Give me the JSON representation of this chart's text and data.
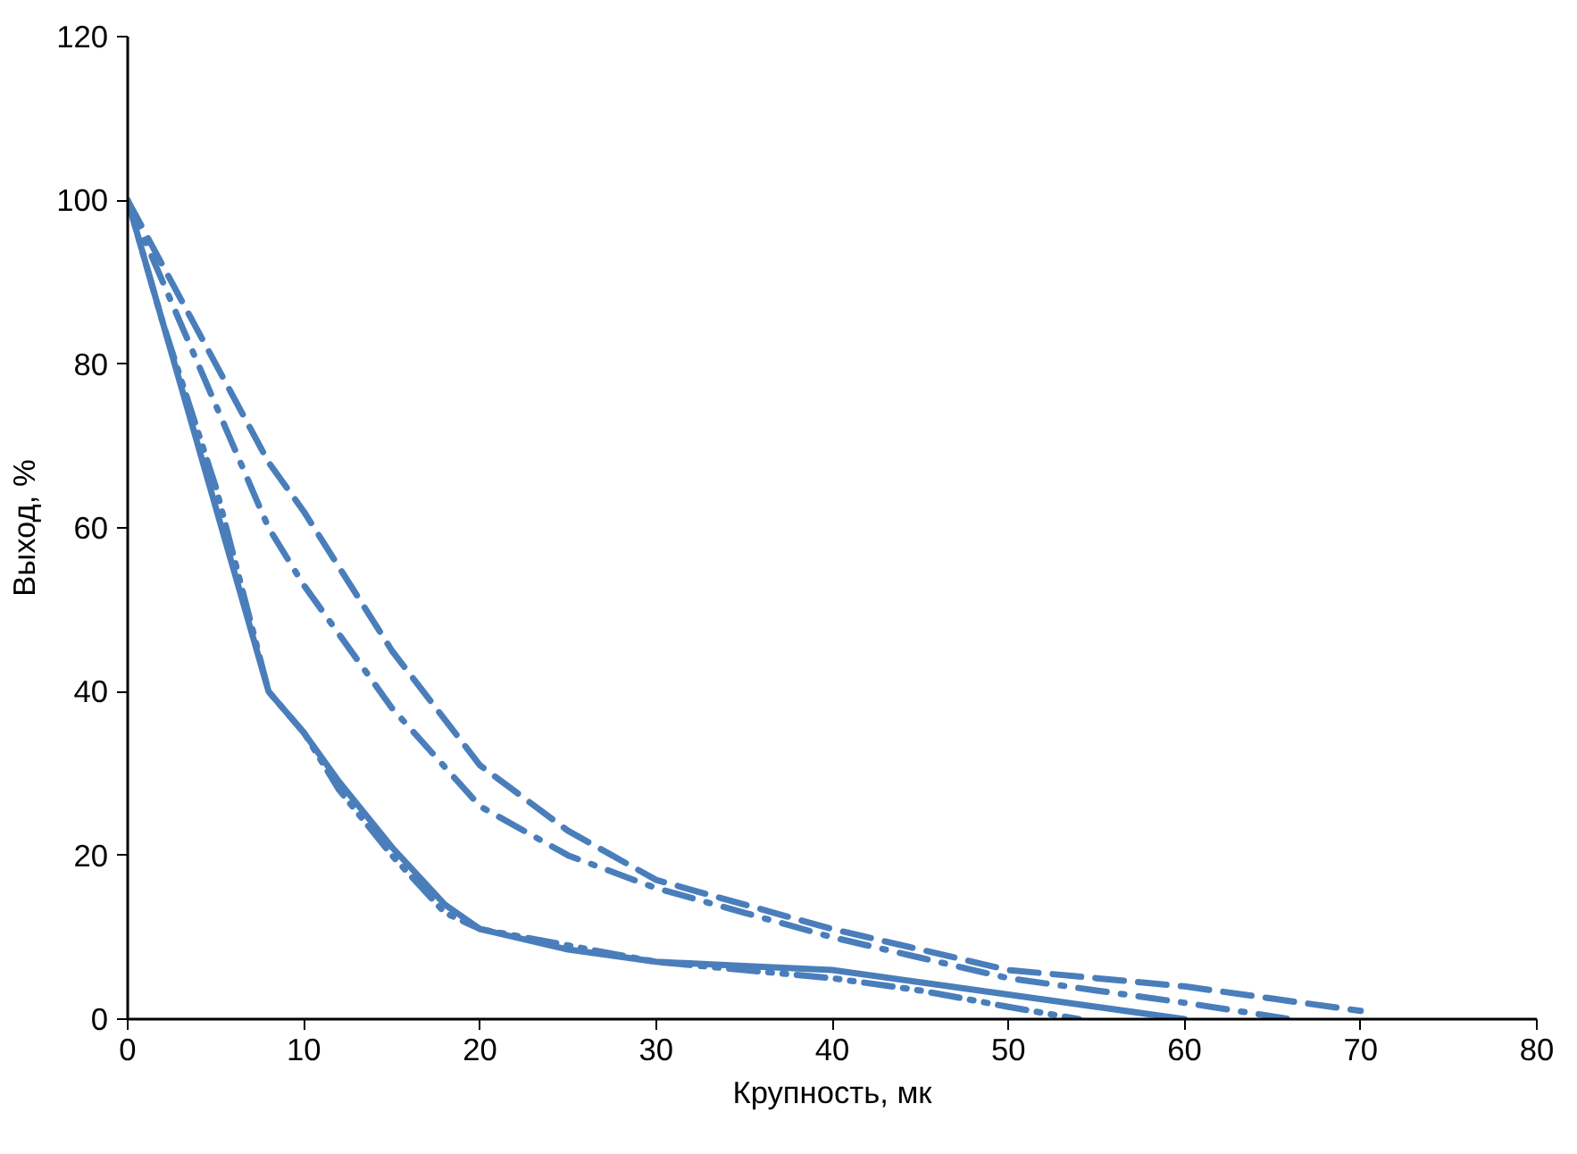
{
  "chart_data": {
    "type": "line",
    "xlabel": "Крупность, мк",
    "ylabel": "Выход, %",
    "xlim": [
      0,
      80
    ],
    "xticks": [
      0,
      10,
      20,
      30,
      40,
      50,
      60,
      70,
      80
    ],
    "ylim": [
      0,
      120
    ],
    "yticks": [
      0,
      20,
      40,
      60,
      80,
      100,
      120
    ],
    "grid": false,
    "marker": "none",
    "series": [
      {
        "color": "#4a7ebb",
        "line_style": "solid",
        "x": [
          0,
          2,
          4,
          6,
          8,
          10,
          12,
          15,
          18,
          20,
          25,
          30,
          35,
          40,
          45,
          50,
          55,
          60
        ],
        "values": [
          100,
          85,
          70,
          55,
          40,
          35,
          29,
          21,
          14,
          11,
          8.5,
          7,
          6.5,
          6,
          4.5,
          3,
          1.5,
          0
        ]
      },
      {
        "color": "#4a7ebb",
        "line_style": "dashdotdot",
        "x": [
          0,
          2,
          5,
          8,
          10,
          12,
          15,
          18,
          20,
          25,
          30,
          35,
          40,
          45,
          50,
          54
        ],
        "values": [
          100,
          85,
          65,
          40,
          35,
          28,
          20,
          13,
          11,
          9,
          7,
          6,
          5,
          3.5,
          1.5,
          0
        ]
      },
      {
        "color": "#4a7ebb",
        "line_style": "dashdot",
        "x": [
          0,
          3,
          5,
          8,
          10,
          15,
          20,
          25,
          30,
          35,
          40,
          45,
          50,
          55,
          60,
          66
        ],
        "values": [
          100,
          85,
          75,
          60,
          53,
          38,
          26,
          20,
          16,
          13,
          10,
          7.5,
          5,
          3.5,
          2,
          0
        ]
      },
      {
        "color": "#4a7ebb",
        "line_style": "dashed",
        "x": [
          0,
          3,
          5,
          8,
          10,
          15,
          20,
          25,
          30,
          35,
          40,
          45,
          50,
          55,
          60,
          65,
          70
        ],
        "values": [
          100,
          88,
          80,
          68,
          62,
          45,
          31,
          23,
          17,
          14,
          11,
          8.5,
          6,
          5,
          4,
          2.5,
          1
        ]
      }
    ]
  }
}
